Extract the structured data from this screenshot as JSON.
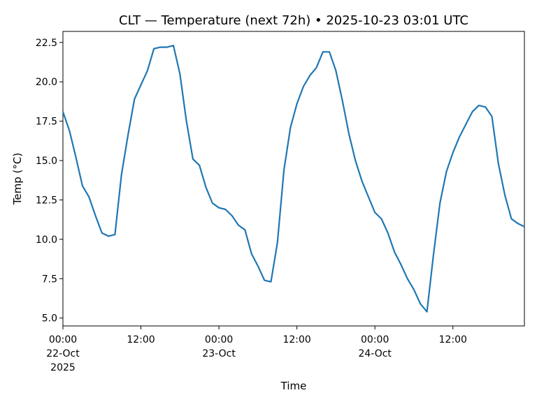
{
  "chart_data": {
    "type": "line",
    "title": "CLT — Temperature (next 72h) • 2025-10-23 03:01 UTC",
    "xlabel": "Time",
    "ylabel": "Temp (°C)",
    "xlim_hours": [
      0,
      71
    ],
    "ylim": [
      4.5,
      23.2
    ],
    "yticks": [
      5.0,
      7.5,
      10.0,
      12.5,
      15.0,
      17.5,
      20.0,
      22.5
    ],
    "ytick_labels": [
      "5.0",
      "7.5",
      "10.0",
      "12.5",
      "15.0",
      "17.5",
      "20.0",
      "22.5"
    ],
    "xticks": [
      {
        "hour": 0,
        "lines": [
          "00:00",
          "22-Oct",
          "2025"
        ]
      },
      {
        "hour": 12,
        "lines": [
          "12:00"
        ]
      },
      {
        "hour": 24,
        "lines": [
          "00:00",
          "23-Oct"
        ]
      },
      {
        "hour": 36,
        "lines": [
          "12:00"
        ]
      },
      {
        "hour": 48,
        "lines": [
          "00:00",
          "24-Oct"
        ]
      },
      {
        "hour": 60,
        "lines": [
          "12:00"
        ]
      }
    ],
    "grid": false,
    "series": [
      {
        "color": "#1f77b4",
        "x_hours": [
          0,
          1,
          2,
          3,
          4,
          5,
          6,
          7,
          8,
          9,
          10,
          11,
          12,
          13,
          14,
          15,
          16,
          17,
          18,
          19,
          20,
          21,
          22,
          23,
          24,
          25,
          26,
          27,
          28,
          29,
          30,
          31,
          32,
          33,
          34,
          35,
          36,
          37,
          38,
          39,
          40,
          41,
          42,
          43,
          44,
          45,
          46,
          47,
          48,
          49,
          50,
          51,
          52,
          53,
          54,
          55,
          56,
          57,
          58,
          59,
          60,
          61,
          62,
          63,
          64,
          65,
          66,
          67,
          68,
          69,
          70,
          71
        ],
        "values": [
          18.1,
          16.9,
          15.2,
          13.4,
          12.7,
          11.5,
          10.4,
          10.2,
          10.3,
          14.1,
          16.6,
          18.9,
          19.8,
          20.7,
          22.1,
          22.2,
          22.2,
          22.3,
          20.5,
          17.5,
          15.1,
          14.7,
          13.3,
          12.3,
          12.0,
          11.9,
          11.5,
          10.9,
          10.6,
          9.1,
          8.3,
          7.4,
          7.3,
          9.8,
          14.4,
          17.1,
          18.6,
          19.7,
          20.4,
          20.9,
          21.9,
          21.9,
          20.7,
          18.8,
          16.7,
          15.0,
          13.7,
          12.7,
          11.7,
          11.3,
          10.4,
          9.2,
          8.4,
          7.5,
          6.8,
          5.9,
          5.4,
          9.0,
          12.3,
          14.3,
          15.5,
          16.5,
          17.3,
          18.1,
          18.5,
          18.4,
          17.8,
          14.8,
          12.8,
          11.3,
          11.0,
          10.8
        ]
      }
    ]
  }
}
